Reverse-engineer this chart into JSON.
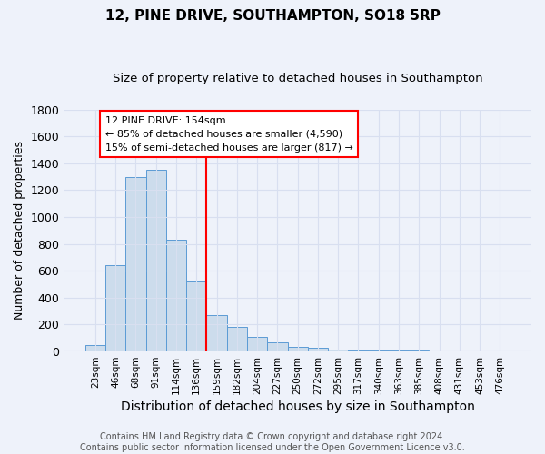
{
  "title": "12, PINE DRIVE, SOUTHAMPTON, SO18 5RP",
  "subtitle": "Size of property relative to detached houses in Southampton",
  "xlabel": "Distribution of detached houses by size in Southampton",
  "ylabel": "Number of detached properties",
  "categories": [
    "23sqm",
    "46sqm",
    "68sqm",
    "91sqm",
    "114sqm",
    "136sqm",
    "159sqm",
    "182sqm",
    "204sqm",
    "227sqm",
    "250sqm",
    "272sqm",
    "295sqm",
    "317sqm",
    "340sqm",
    "363sqm",
    "385sqm",
    "408sqm",
    "431sqm",
    "453sqm",
    "476sqm"
  ],
  "values": [
    50,
    640,
    1300,
    1350,
    830,
    520,
    270,
    180,
    110,
    65,
    35,
    25,
    15,
    10,
    8,
    10,
    5,
    2,
    1,
    1,
    0
  ],
  "bar_color": "#ccdcec",
  "bar_edge_color": "#5b9bd5",
  "red_line_x": 5.5,
  "annotation_text": "12 PINE DRIVE: 154sqm\n← 85% of detached houses are smaller (4,590)\n15% of semi-detached houses are larger (817) →",
  "annotation_box_color": "white",
  "annotation_box_edge": "red",
  "red_line_color": "red",
  "ylim": [
    0,
    1800
  ],
  "yticks": [
    0,
    200,
    400,
    600,
    800,
    1000,
    1200,
    1400,
    1600,
    1800
  ],
  "bg_color": "#eef2fa",
  "grid_color": "#d8dff0",
  "footer": "Contains HM Land Registry data © Crown copyright and database right 2024.\nContains public sector information licensed under the Open Government Licence v3.0.",
  "title_fontsize": 11,
  "subtitle_fontsize": 9.5,
  "xlabel_fontsize": 10,
  "ylabel_fontsize": 9,
  "footer_fontsize": 7,
  "ann_fontsize": 8
}
